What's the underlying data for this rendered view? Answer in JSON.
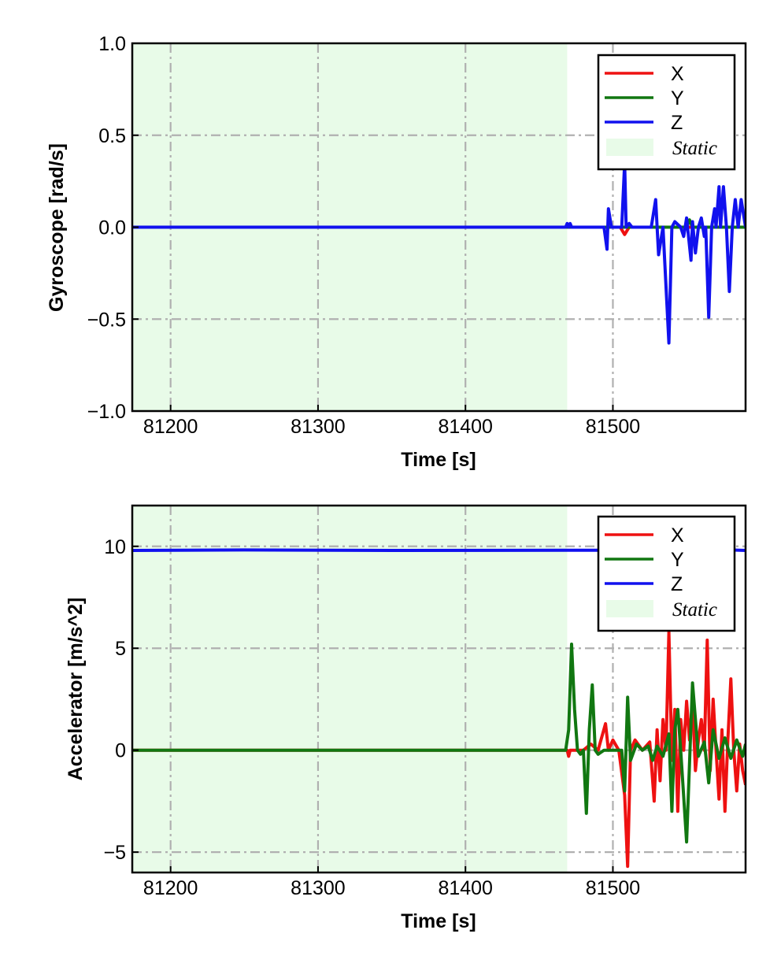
{
  "chart_data": [
    {
      "type": "line",
      "xlabel": "Time [s]",
      "ylabel": "Gyroscope [rad/s]",
      "xlim": [
        81174,
        81590
      ],
      "ylim": [
        -1.0,
        1.0
      ],
      "x_ticks": [
        81200,
        81300,
        81400,
        81500
      ],
      "x_tick_labels": [
        "81200",
        "81300",
        "81400",
        "81500"
      ],
      "y_ticks": [
        -1.0,
        -0.5,
        0.0,
        0.5,
        1.0
      ],
      "y_tick_labels": [
        "−1.0",
        "−0.5",
        "0.0",
        "0.5",
        "1.0"
      ],
      "grid": true,
      "legend_position": "top-right",
      "static_region": {
        "label": "Static",
        "x_start": 81174,
        "x_end": 81469,
        "color": "#e8fbe8"
      },
      "series": [
        {
          "name": "X",
          "color": "#ee1111",
          "x": [
            81174,
            81469,
            81490,
            81495,
            81500,
            81505,
            81508,
            81511,
            81520,
            81540,
            81560,
            81575,
            81590
          ],
          "values": [
            0.0,
            0.0,
            0.0,
            0.0,
            0.0,
            0.0,
            -0.04,
            0.0,
            0.0,
            0.0,
            0.0,
            0.0,
            0.0
          ]
        },
        {
          "name": "Y",
          "color": "#117711",
          "x": [
            81174,
            81469,
            81500,
            81530,
            81550,
            81552,
            81554,
            81570,
            81590
          ],
          "values": [
            0.0,
            0.0,
            0.0,
            0.0,
            0.0,
            0.04,
            0.0,
            0.0,
            0.0
          ]
        },
        {
          "name": "Z",
          "color": "#1111ee",
          "x": [
            81174,
            81468,
            81469,
            81470,
            81471,
            81472,
            81494,
            81496,
            81497,
            81499,
            81501,
            81506,
            81508,
            81509,
            81511,
            81513,
            81526,
            81529,
            81531,
            81534,
            81538,
            81540,
            81542,
            81546,
            81548,
            81550,
            81553,
            81554,
            81556,
            81558,
            81560,
            81562,
            81563,
            81565,
            81567,
            81569,
            81570,
            81572,
            81573,
            81575,
            81577,
            81579,
            81581,
            81583,
            81585,
            81587,
            81590
          ],
          "values": [
            0.0,
            0.0,
            0.02,
            0.0,
            0.02,
            0.0,
            0.0,
            -0.12,
            0.1,
            0.0,
            0.0,
            0.0,
            0.35,
            0.0,
            0.02,
            0.0,
            0.0,
            0.15,
            -0.15,
            0.0,
            -0.63,
            0.0,
            0.03,
            0.0,
            -0.05,
            0.05,
            -0.18,
            0.03,
            -0.14,
            0.0,
            0.05,
            -0.05,
            0.0,
            -0.49,
            0.0,
            0.1,
            0.0,
            0.22,
            0.0,
            0.22,
            0.0,
            -0.35,
            0.0,
            0.15,
            0.0,
            0.15,
            0.0
          ]
        }
      ]
    },
    {
      "type": "line",
      "xlabel": "Time [s]",
      "ylabel": "Accelerator [m/s^2]",
      "xlim": [
        81174,
        81590
      ],
      "ylim": [
        -6,
        12
      ],
      "x_ticks": [
        81200,
        81300,
        81400,
        81500
      ],
      "x_tick_labels": [
        "81200",
        "81300",
        "81400",
        "81500"
      ],
      "y_ticks": [
        -5,
        0,
        5,
        10
      ],
      "y_tick_labels": [
        "−5",
        "0",
        "5",
        "10"
      ],
      "grid": true,
      "legend_position": "top-right",
      "static_region": {
        "label": "Static",
        "x_start": 81174,
        "x_end": 81469,
        "color": "#e8fbe8"
      },
      "series": [
        {
          "name": "X",
          "color": "#ee1111",
          "x": [
            81174,
            81469,
            81470,
            81471,
            81480,
            81485,
            81490,
            81495,
            81497,
            81500,
            81504,
            81508,
            81510,
            81512,
            81515,
            81520,
            81525,
            81528,
            81530,
            81532,
            81534,
            81536,
            81538,
            81540,
            81542,
            81544,
            81546,
            81548,
            81550,
            81552,
            81554,
            81556,
            81558,
            81560,
            81562,
            81564,
            81566,
            81568,
            81570,
            81572,
            81574,
            81576,
            81578,
            81580,
            81582,
            81584,
            81586,
            81588,
            81590
          ],
          "values": [
            0.0,
            0.0,
            -0.3,
            0.0,
            0.0,
            0.3,
            0.0,
            1.3,
            0.0,
            0.5,
            0.0,
            -2.2,
            -5.7,
            0.0,
            0.5,
            0.0,
            0.4,
            -2.5,
            1.0,
            -1.5,
            1.5,
            0.0,
            5.8,
            -0.5,
            2.0,
            -3.0,
            1.5,
            0.0,
            2.4,
            0.5,
            2.4,
            -1.0,
            0.5,
            1.5,
            0.0,
            5.4,
            -1.0,
            2.5,
            0.0,
            -2.4,
            1.0,
            -3.0,
            0.5,
            3.5,
            0.0,
            -2.0,
            0.3,
            -1.0,
            -1.7
          ]
        },
        {
          "name": "Y",
          "color": "#117711",
          "x": [
            81174,
            81468,
            81470,
            81472,
            81474,
            81476,
            81478,
            81480,
            81482,
            81484,
            81486,
            81488,
            81490,
            81494,
            81496,
            81500,
            81504,
            81506,
            81508,
            81510,
            81512,
            81516,
            81520,
            81524,
            81527,
            81530,
            81534,
            81538,
            81540,
            81542,
            81544,
            81546,
            81550,
            81554,
            81558,
            81562,
            81565,
            81568,
            81572,
            81576,
            81580,
            81584,
            81588,
            81590
          ],
          "values": [
            0.0,
            0.0,
            1.0,
            5.2,
            2.0,
            0.0,
            -0.2,
            0.0,
            -3.1,
            1.0,
            3.2,
            0.0,
            -0.2,
            0.0,
            0.0,
            0.0,
            0.0,
            0.0,
            -2.0,
            2.6,
            -0.5,
            0.3,
            0.0,
            0.2,
            -0.5,
            0.2,
            -0.3,
            0.8,
            -3.0,
            1.0,
            2.0,
            0.0,
            -4.5,
            3.3,
            -0.3,
            0.4,
            -1.6,
            1.0,
            -0.4,
            0.6,
            -0.4,
            0.5,
            -0.3,
            0.3
          ]
        },
        {
          "name": "Z",
          "color": "#1111ee",
          "x": [
            81174,
            81250,
            81350,
            81469,
            81560,
            81580,
            81590
          ],
          "values": [
            9.8,
            9.82,
            9.8,
            9.81,
            9.8,
            9.82,
            9.8
          ]
        }
      ]
    }
  ]
}
